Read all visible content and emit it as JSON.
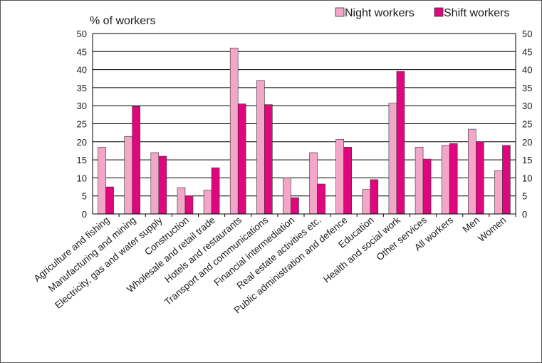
{
  "chart_data": {
    "type": "bar",
    "ylabel": "% of workers",
    "ylim": [
      0,
      50
    ],
    "yticks": [
      0,
      5,
      10,
      15,
      20,
      25,
      30,
      35,
      40,
      45,
      50
    ],
    "grid": true,
    "legend_position": "top-right",
    "categories": [
      "Agriculture and fishing",
      "Manufacturing and mining",
      "Electricity, gas and water supply",
      "Construction",
      "Wholesale and retail trade",
      "Hotels and restaurants",
      "Transport and communications",
      "Financial intermediation",
      "Real estate activities etc.",
      "Public administration and defence",
      "Education",
      "Health and social work",
      "Other services",
      "All workers",
      "Men",
      "Women"
    ],
    "series": [
      {
        "name": "Night workers",
        "color": "#f4a6c8",
        "values": [
          18.5,
          21.5,
          17,
          7.3,
          6.6,
          46,
          37,
          10,
          17,
          20.7,
          6.8,
          30.7,
          18.5,
          19,
          23.5,
          12
        ]
      },
      {
        "name": "Shift workers",
        "color": "#e0067e",
        "values": [
          7.5,
          29.8,
          16,
          5,
          12.8,
          30.5,
          30.3,
          4.5,
          8.3,
          18.5,
          9.5,
          39.5,
          15.2,
          19.5,
          20,
          19
        ]
      }
    ]
  }
}
